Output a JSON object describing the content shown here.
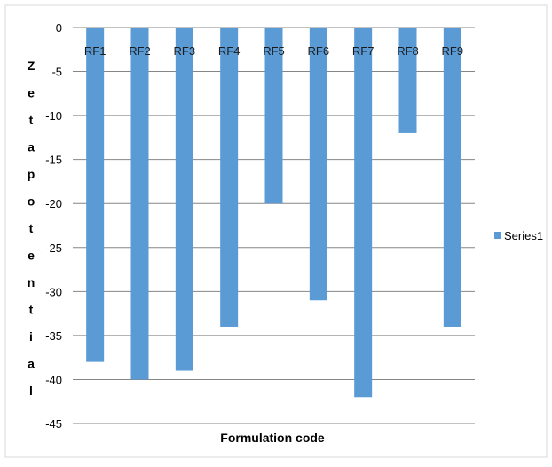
{
  "chart_data": {
    "type": "bar",
    "categories": [
      "RF1",
      "RF2",
      "RF3",
      "RF4",
      "RF5",
      "RF6",
      "RF7",
      "RF8",
      "RF9"
    ],
    "series": [
      {
        "name": "Series1",
        "values": [
          -38,
          -40,
          -39,
          -34,
          -20,
          -31,
          -42,
          -12,
          -34
        ]
      }
    ],
    "title": "",
    "xlabel": "Formulation code",
    "ylabel": "Zeta potential",
    "ylabel_letters": [
      "Z",
      "e",
      "t",
      "a",
      "p",
      "o",
      "t",
      "e",
      "n",
      "t",
      "i",
      "a",
      "l"
    ],
    "ylim": [
      -45,
      0
    ],
    "yticks": [
      0,
      -5,
      -10,
      -15,
      -20,
      -25,
      -30,
      -35,
      -40,
      -45
    ],
    "grid": true,
    "legend": "right",
    "bar_color": "#5b9bd5",
    "grid_color": "#868686"
  }
}
